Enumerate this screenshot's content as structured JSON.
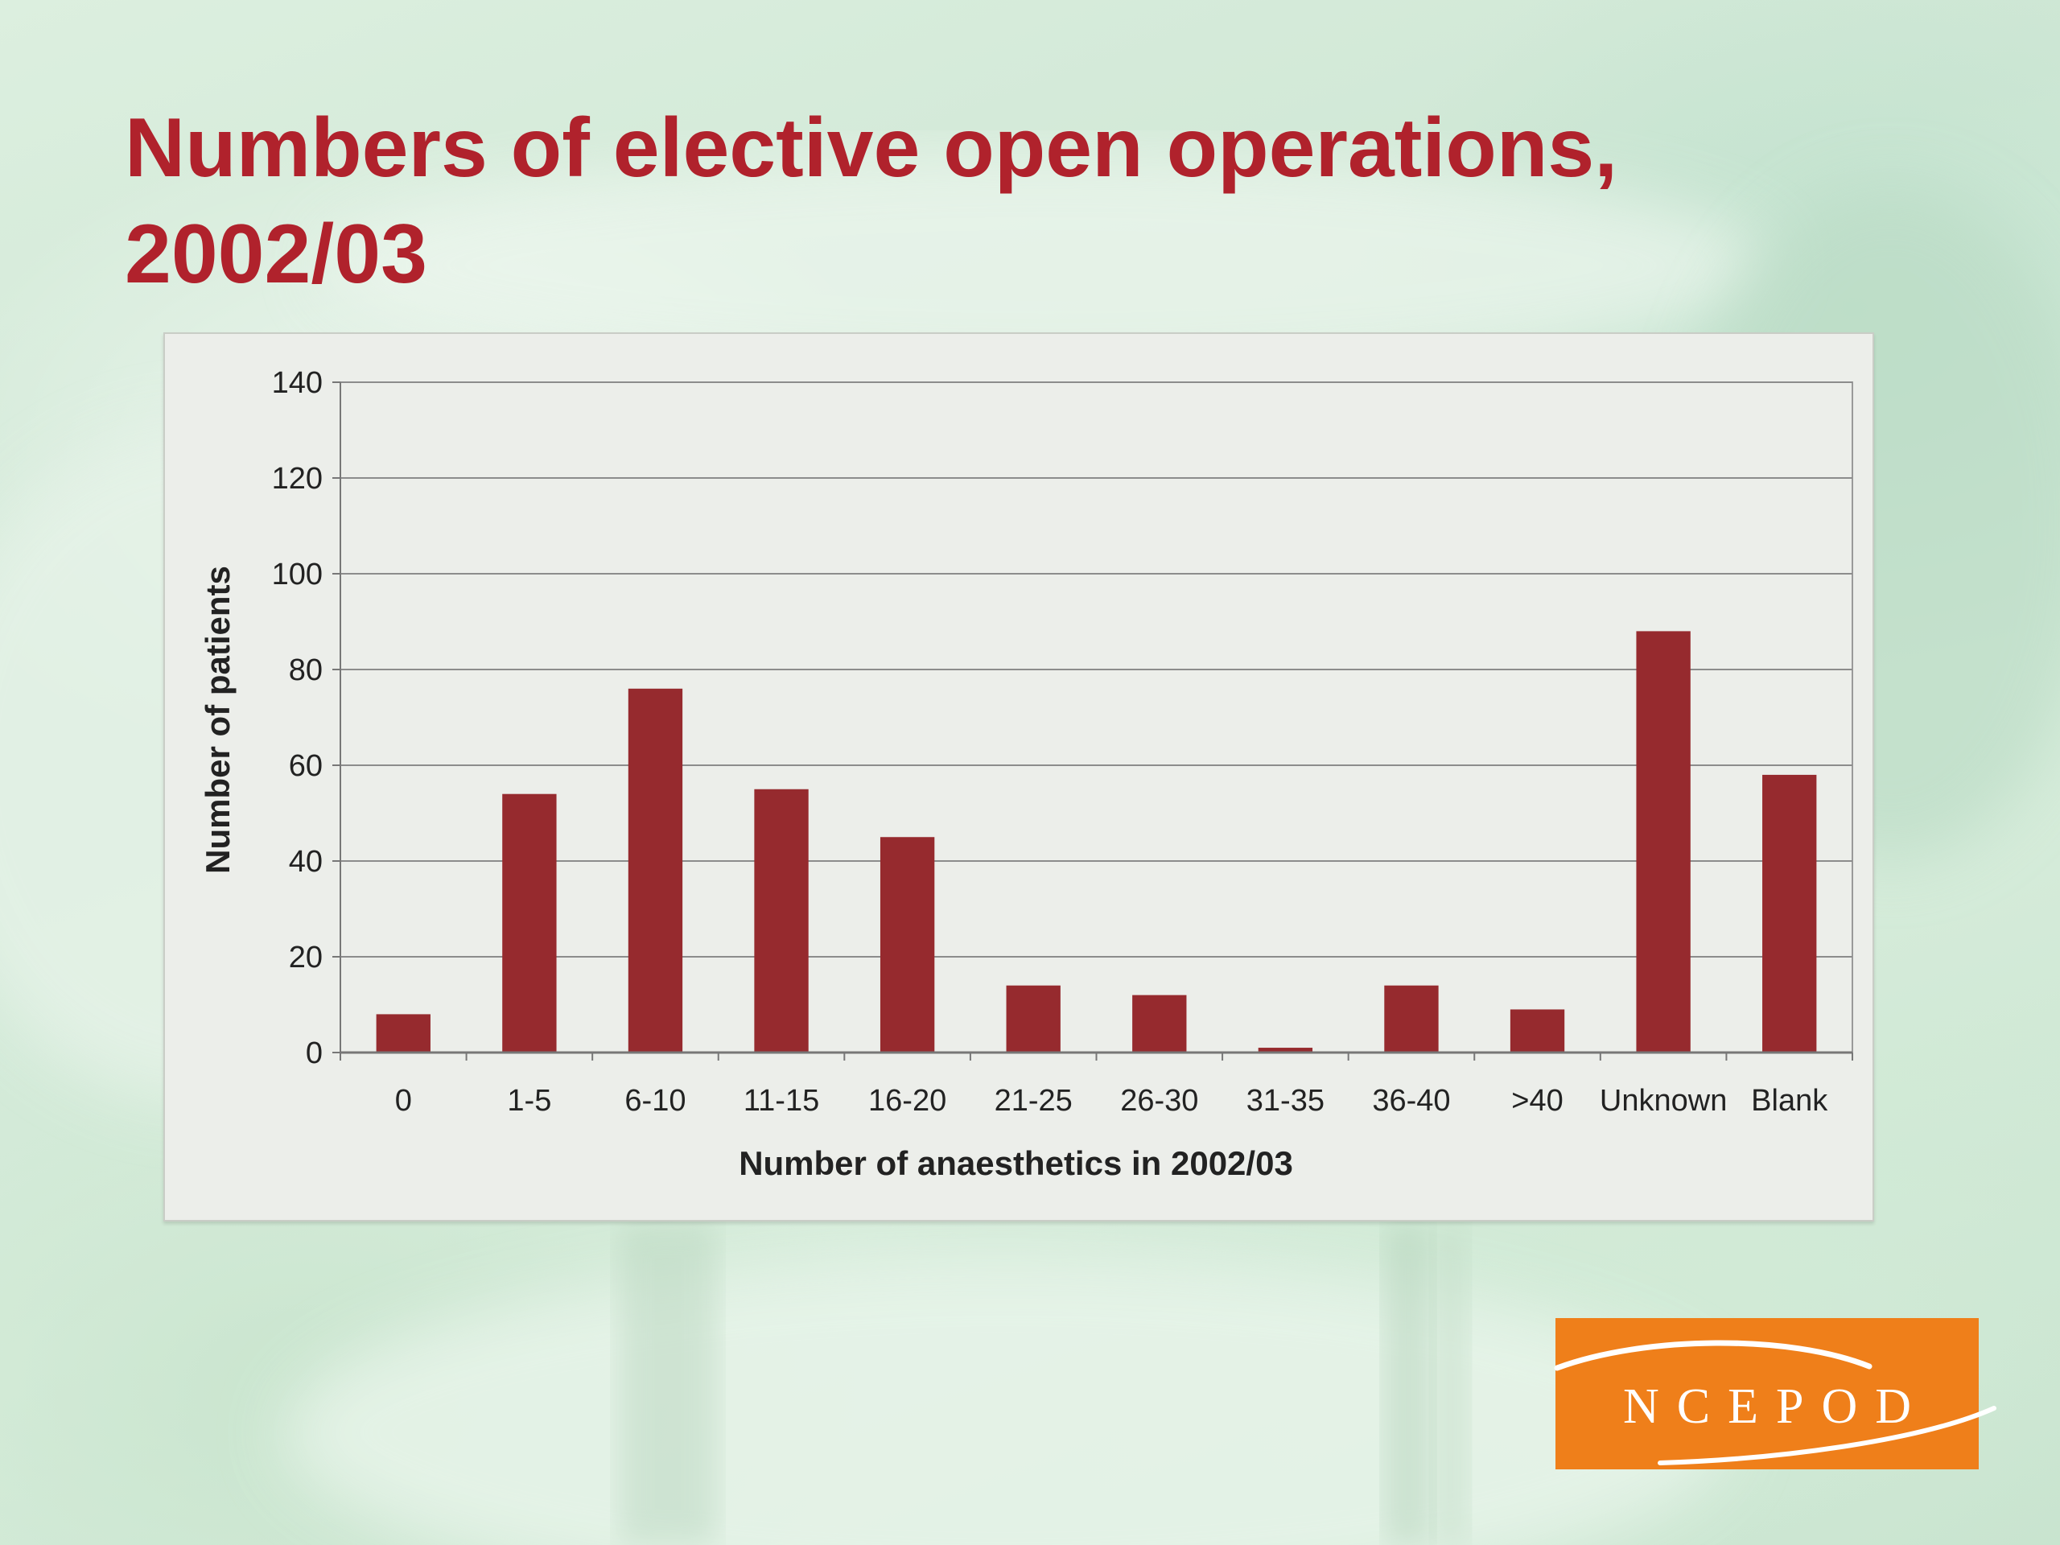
{
  "slide": {
    "title_line1": "Numbers of elective open operations,",
    "title_line2": "2002/03",
    "title_color": "#b0222c",
    "logo_text": "NCEPOD",
    "logo_color": "#ef7f1a"
  },
  "chart_data": {
    "type": "bar",
    "title": "",
    "xlabel": "Number of anaesthetics in 2002/03",
    "ylabel": "Number of patients",
    "ylim": [
      0,
      140
    ],
    "yticks": [
      0,
      20,
      40,
      60,
      80,
      100,
      120,
      140
    ],
    "grid": true,
    "bar_color": "#962a2e",
    "categories": [
      "0",
      "1-5",
      "6-10",
      "11-15",
      "16-20",
      "21-25",
      "26-30",
      "31-35",
      "36-40",
      ">40",
      "Unknown",
      "Blank"
    ],
    "values": [
      8,
      54,
      76,
      55,
      45,
      14,
      12,
      1,
      14,
      9,
      88,
      58
    ]
  }
}
